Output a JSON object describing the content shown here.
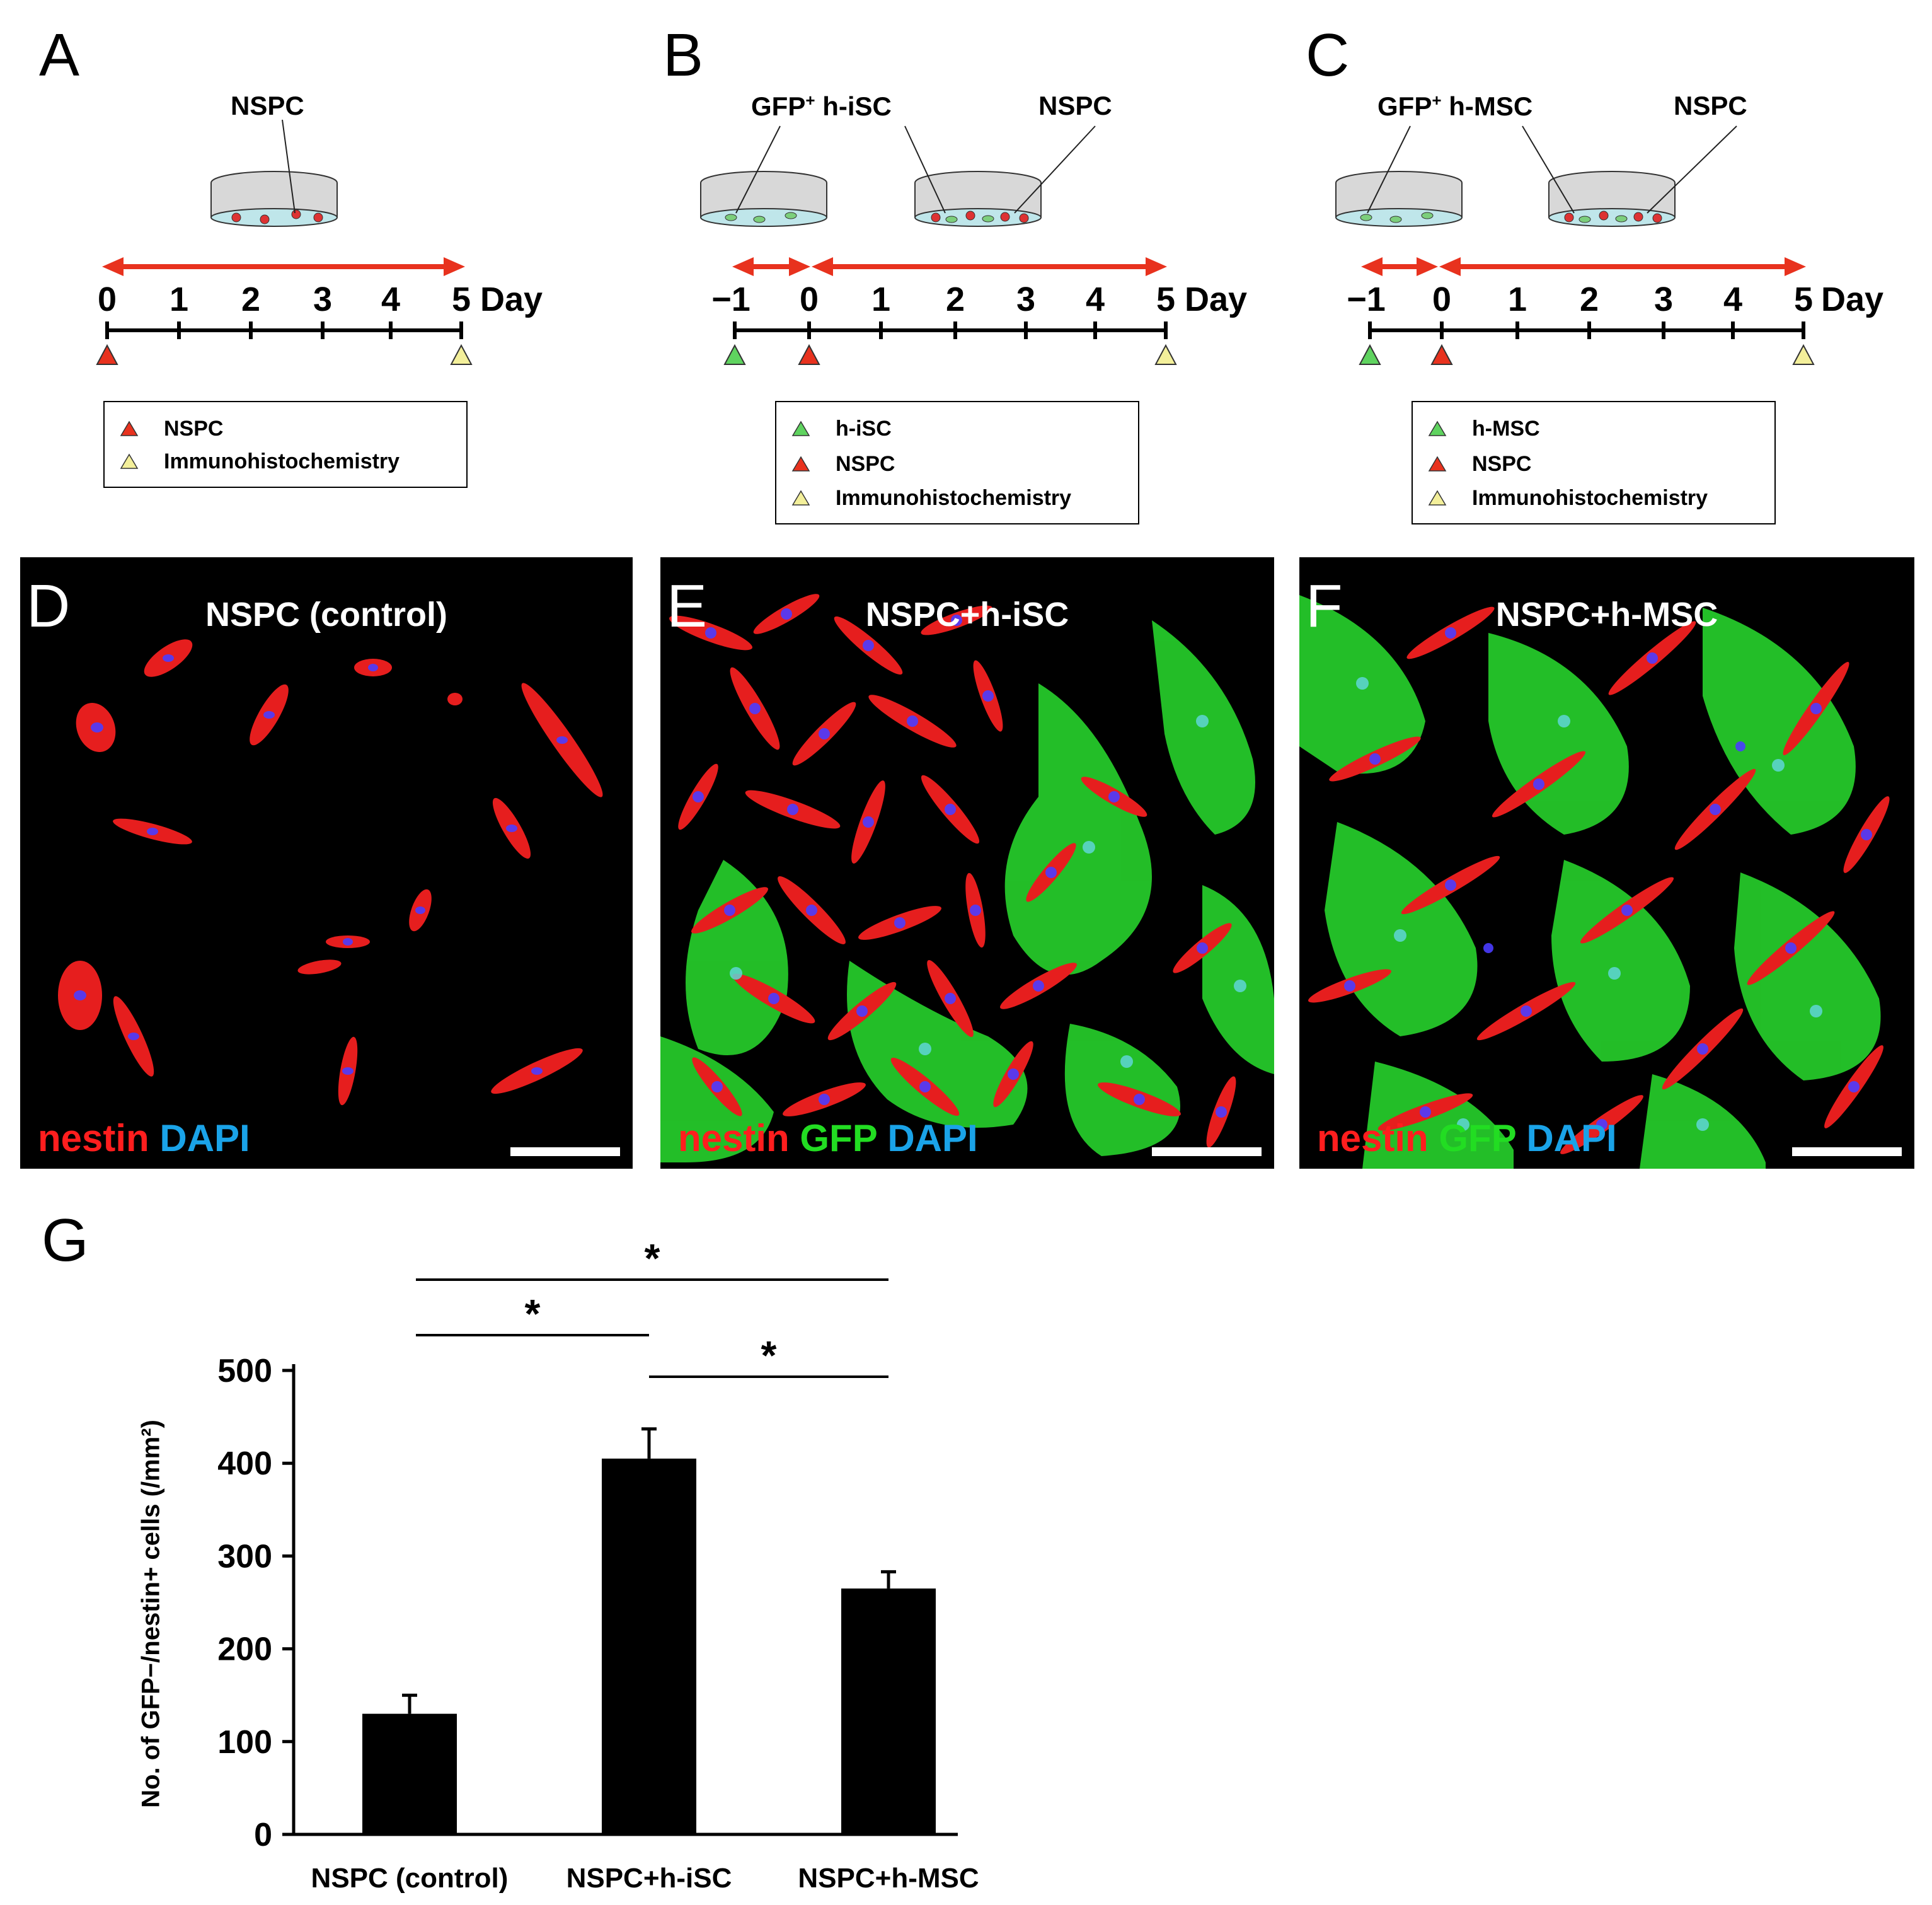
{
  "panels": {
    "A": {
      "letter": "A",
      "dish_labels": [
        "NSPC"
      ],
      "days": [
        "0",
        "1",
        "2",
        "3",
        "4",
        "5"
      ],
      "day_unit": "Day",
      "legend": [
        "NSPC",
        "Immunohistochemistry"
      ]
    },
    "B": {
      "letter": "B",
      "dish_label_gfp": "GFP",
      "dish_label_sup": "+",
      "dish_label_cell": " h-iSC",
      "dish_label_nspc": "NSPC",
      "days": [
        "−1",
        "0",
        "1",
        "2",
        "3",
        "4",
        "5"
      ],
      "day_unit": "Day",
      "legend": [
        "h-iSC",
        "NSPC",
        "Immunohistochemistry"
      ]
    },
    "C": {
      "letter": "C",
      "dish_label_gfp": "GFP",
      "dish_label_sup": "+",
      "dish_label_cell": " h-MSC",
      "dish_label_nspc": "NSPC",
      "days": [
        "−1",
        "0",
        "1",
        "2",
        "3",
        "4",
        "5"
      ],
      "day_unit": "Day",
      "legend": [
        "h-MSC",
        "NSPC",
        "Immunohistochemistry"
      ]
    },
    "D": {
      "letter": "D",
      "title": "NSPC (control)",
      "stain": [
        "nestin",
        "DAPI"
      ]
    },
    "E": {
      "letter": "E",
      "title": "NSPC+h-iSC",
      "stain": [
        "nestin",
        "GFP",
        "DAPI"
      ]
    },
    "F": {
      "letter": "F",
      "title": "NSPC+h-MSC",
      "stain": [
        "nestin",
        "GFP",
        "DAPI"
      ]
    },
    "G": {
      "letter": "G"
    }
  },
  "colors": {
    "arrow": "#e8321e",
    "nestin": "#ff1e1e",
    "gfp": "#22dd22",
    "dapi": "#1aa3e8",
    "marker_green": "#5fd35f",
    "marker_red": "#e8321e",
    "marker_yellow": "#f3ef9a"
  },
  "chart_data": {
    "type": "bar",
    "categories": [
      "NSPC (control)",
      "NSPC+h-iSC",
      "NSPC+h-MSC"
    ],
    "values": [
      130,
      405,
      265
    ],
    "errors": [
      20,
      32,
      18
    ],
    "ylabel": "No. of GFP−/nestin+ cells (/mm²)",
    "ylim": [
      0,
      500
    ],
    "yticks": [
      "0",
      "100",
      "200",
      "300",
      "400",
      "500"
    ],
    "significance": [
      {
        "from": 0,
        "to": 2,
        "label": "*"
      },
      {
        "from": 0,
        "to": 1,
        "label": "*"
      },
      {
        "from": 1,
        "to": 2,
        "label": "*"
      }
    ],
    "bar_color": "#000000"
  }
}
